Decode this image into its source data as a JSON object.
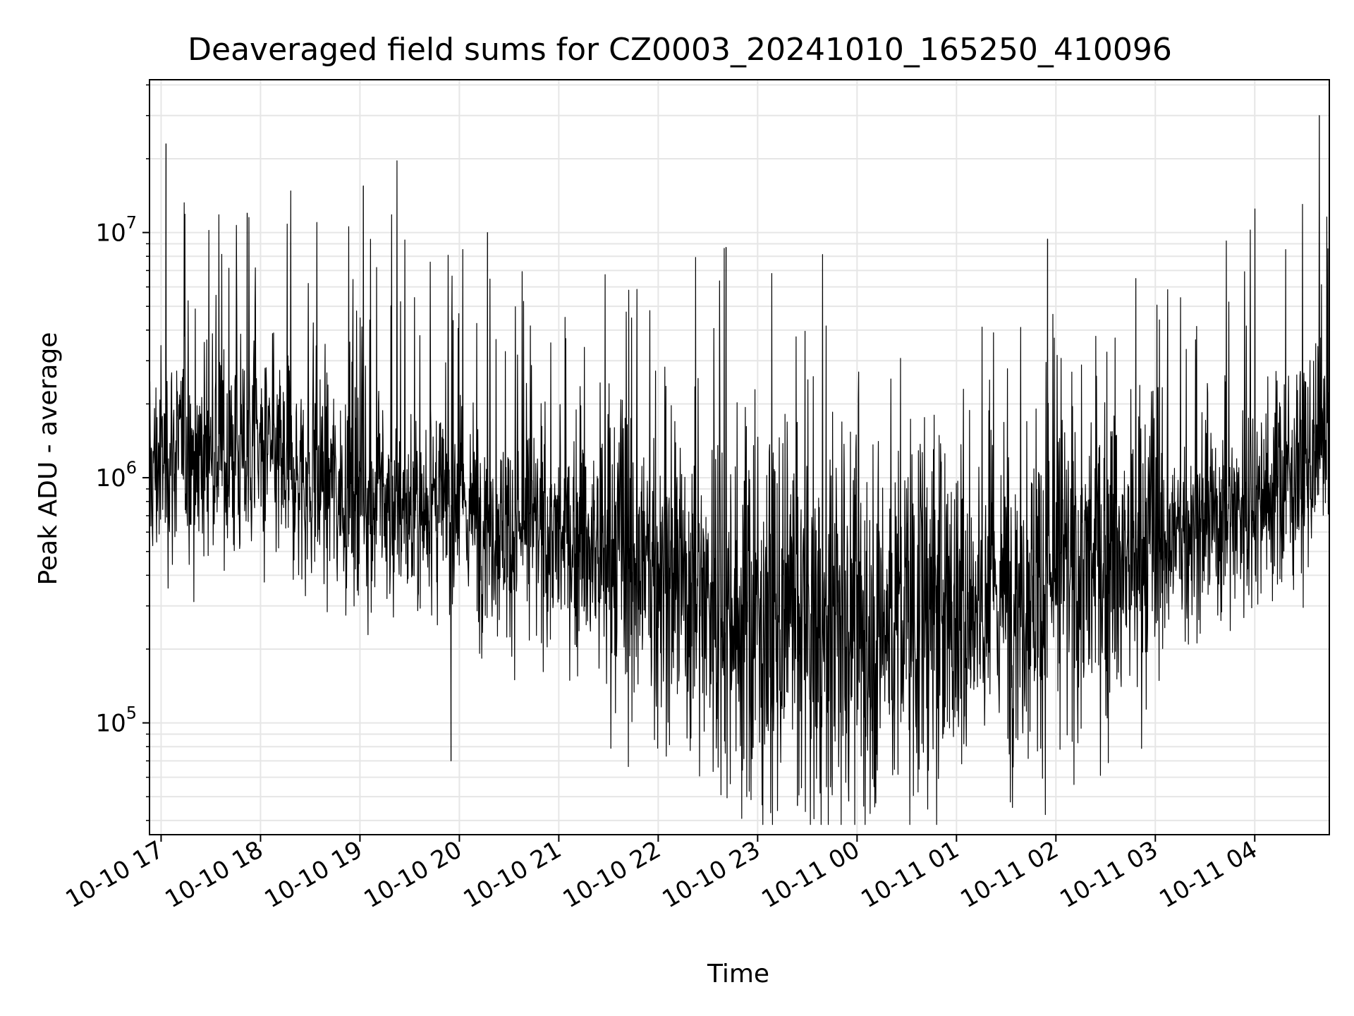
{
  "chart_data": {
    "type": "line",
    "title": "Deaveraged field sums for CZ0003_20241010_165250_410096",
    "xlabel": "Time",
    "ylabel": "Peak ADU - average",
    "y_scale": "log",
    "y_ticks": [
      {
        "value": 100000,
        "base": "10",
        "exp": "5"
      },
      {
        "value": 1000000,
        "base": "10",
        "exp": "6"
      },
      {
        "value": 10000000,
        "base": "10",
        "exp": "7"
      }
    ],
    "ylim": [
      35000,
      42000000
    ],
    "xlim": [
      "2024-10-10 16:53",
      "2024-10-11 04:45"
    ],
    "x_ticks": [
      {
        "value": "2024-10-10 17:00",
        "label": "10-10 17"
      },
      {
        "value": "2024-10-10 18:00",
        "label": "10-10 18"
      },
      {
        "value": "2024-10-10 19:00",
        "label": "10-10 19"
      },
      {
        "value": "2024-10-10 20:00",
        "label": "10-10 20"
      },
      {
        "value": "2024-10-10 21:00",
        "label": "10-10 21"
      },
      {
        "value": "2024-10-10 22:00",
        "label": "10-10 22"
      },
      {
        "value": "2024-10-10 23:00",
        "label": "10-10 23"
      },
      {
        "value": "2024-10-11 00:00",
        "label": "10-11 00"
      },
      {
        "value": "2024-10-11 01:00",
        "label": "10-11 01"
      },
      {
        "value": "2024-10-11 02:00",
        "label": "10-11 02"
      },
      {
        "value": "2024-10-11 03:00",
        "label": "10-11 03"
      },
      {
        "value": "2024-10-11 04:00",
        "label": "10-11 04"
      }
    ],
    "grid": true,
    "line_color": "#000000",
    "grid_color": "#e6e6e6",
    "series": [
      {
        "x": [
          "2024-10-10 16:53",
          "2024-10-10 17:00",
          "2024-10-10 17:10",
          "2024-10-10 17:20",
          "2024-10-10 17:30",
          "2024-10-10 17:40",
          "2024-10-10 17:50",
          "2024-10-10 18:00",
          "2024-10-10 18:10",
          "2024-10-10 18:20",
          "2024-10-10 18:30",
          "2024-10-10 18:40",
          "2024-10-10 18:50",
          "2024-10-10 19:00",
          "2024-10-10 19:10",
          "2024-10-10 19:20",
          "2024-10-10 19:30",
          "2024-10-10 19:40",
          "2024-10-10 19:50",
          "2024-10-10 20:00",
          "2024-10-10 20:10",
          "2024-10-10 20:20",
          "2024-10-10 20:30",
          "2024-10-10 20:40",
          "2024-10-10 20:50",
          "2024-10-10 21:00",
          "2024-10-10 21:10",
          "2024-10-10 21:20",
          "2024-10-10 21:30",
          "2024-10-10 21:40",
          "2024-10-10 21:50",
          "2024-10-10 22:00",
          "2024-10-10 22:10",
          "2024-10-10 22:20",
          "2024-10-10 22:30",
          "2024-10-10 22:40",
          "2024-10-10 22:50",
          "2024-10-10 23:00",
          "2024-10-10 23:10",
          "2024-10-10 23:20",
          "2024-10-10 23:30",
          "2024-10-10 23:40",
          "2024-10-10 23:50",
          "2024-10-11 00:00",
          "2024-10-11 00:10",
          "2024-10-11 00:20",
          "2024-10-11 00:30",
          "2024-10-11 00:40",
          "2024-10-11 00:50",
          "2024-10-11 01:00",
          "2024-10-11 01:10",
          "2024-10-11 01:20",
          "2024-10-11 01:30",
          "2024-10-11 01:40",
          "2024-10-11 01:50",
          "2024-10-11 02:00",
          "2024-10-11 02:10",
          "2024-10-11 02:20",
          "2024-10-11 02:30",
          "2024-10-11 02:40",
          "2024-10-11 02:50",
          "2024-10-11 03:00",
          "2024-10-11 03:10",
          "2024-10-11 03:20",
          "2024-10-11 03:30",
          "2024-10-11 03:40",
          "2024-10-11 03:50",
          "2024-10-11 04:00",
          "2024-10-11 04:10",
          "2024-10-11 04:20",
          "2024-10-11 04:30",
          "2024-10-11 04:40",
          "2024-10-11 04:45"
        ],
        "y": [
          1000000,
          1200000,
          1300000,
          1250000,
          1300000,
          1200000,
          1250000,
          1300000,
          1150000,
          1050000,
          950000,
          1000000,
          900000,
          850000,
          800000,
          750000,
          700000,
          780000,
          750000,
          800000,
          700000,
          650000,
          600000,
          620000,
          580000,
          550000,
          520000,
          500000,
          480000,
          450000,
          430000,
          400000,
          380000,
          350000,
          330000,
          300000,
          280000,
          260000,
          250000,
          240000,
          230000,
          220000,
          230000,
          240000,
          250000,
          260000,
          270000,
          280000,
          290000,
          300000,
          320000,
          330000,
          340000,
          350000,
          360000,
          380000,
          400000,
          420000,
          440000,
          450000,
          470000,
          500000,
          550000,
          600000,
          650000,
          700000,
          750000,
          800000,
          900000,
          1000000,
          1100000,
          1200000,
          1100000
        ],
        "spikes": [
          {
            "x": "2024-10-10 17:03",
            "y": 23000000
          },
          {
            "x": "2024-10-10 17:52",
            "y": 12000000
          },
          {
            "x": "2024-10-10 19:02",
            "y": 15500000
          },
          {
            "x": "2024-10-10 20:17",
            "y": 10000000
          },
          {
            "x": "2024-10-10 22:41",
            "y": 8700000
          },
          {
            "x": "2024-10-11 01:55",
            "y": 9400000
          },
          {
            "x": "2024-10-11 04:39",
            "y": 30000000
          },
          {
            "x": "2024-10-10 19:55",
            "y": 70000
          },
          {
            "x": "2024-10-10 23:24",
            "y": 46000
          },
          {
            "x": "2024-10-10 23:55",
            "y": 48000
          }
        ]
      }
    ]
  }
}
